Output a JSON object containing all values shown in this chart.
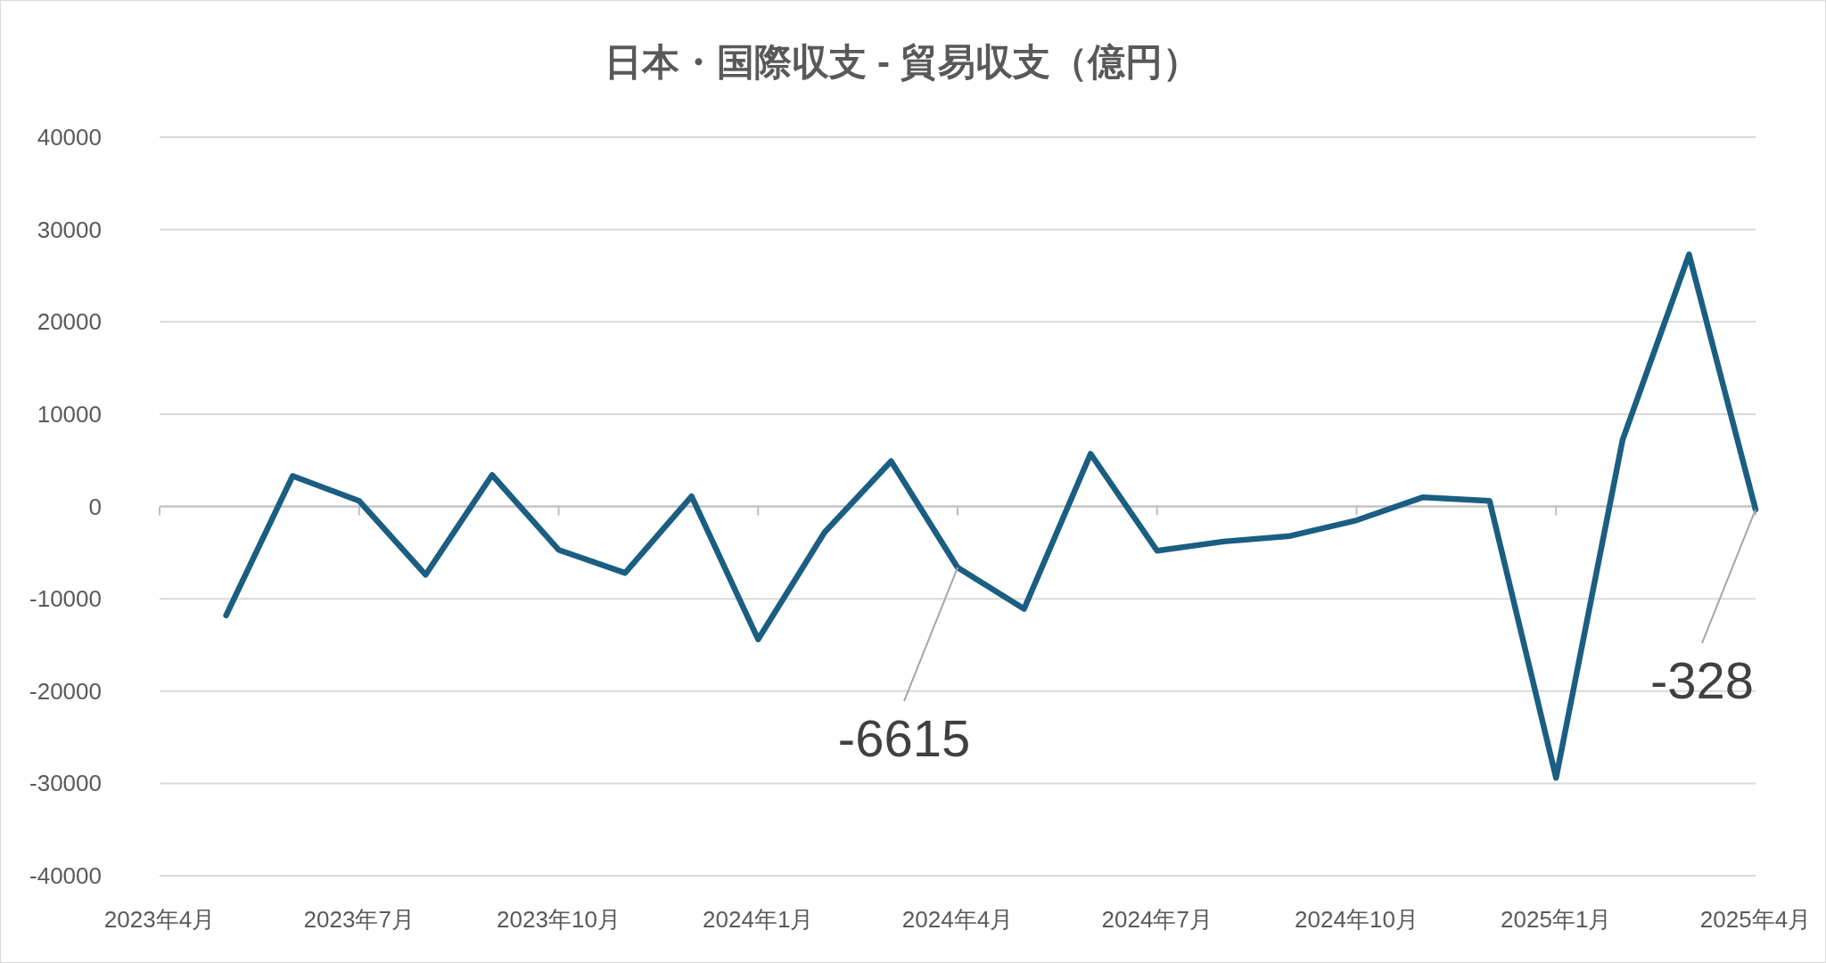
{
  "chart_data": {
    "type": "line",
    "title": "日本・国際収支 - 貿易収支（億円）",
    "x": [
      "2023-05",
      "2023-06",
      "2023-07",
      "2023-08",
      "2023-09",
      "2023-10",
      "2023-11",
      "2023-12",
      "2024-01",
      "2024-02",
      "2024-03",
      "2024-04",
      "2024-05",
      "2024-06",
      "2024-07",
      "2024-08",
      "2024-09",
      "2024-10",
      "2024-11",
      "2024-12",
      "2025-01",
      "2025-02",
      "2025-03",
      "2025-04"
    ],
    "series": [
      {
        "color": "#1a5e82",
        "values": [
          -11800,
          3300,
          600,
          -7400,
          3400,
          -4700,
          -7200,
          1100,
          -14400,
          -2800,
          4900,
          -6615,
          -11100,
          5700,
          -4800,
          -3800,
          -3200,
          -1500,
          1000,
          600,
          -29400,
          7200,
          27300,
          -328
        ],
        "value_labels": [
          null,
          null,
          null,
          null,
          null,
          null,
          null,
          null,
          null,
          null,
          null,
          "-6615",
          null,
          null,
          null,
          null,
          null,
          null,
          null,
          null,
          null,
          null,
          null,
          "-328"
        ]
      }
    ],
    "xlim": [
      "2023-04",
      "2025-04"
    ],
    "xticks": [
      {
        "value": "2023-04",
        "label": "2023年4月"
      },
      {
        "value": "2023-07",
        "label": "2023年7月"
      },
      {
        "value": "2023-10",
        "label": "2023年10月"
      },
      {
        "value": "2024-01",
        "label": "2024年1月"
      },
      {
        "value": "2024-04",
        "label": "2024年4月"
      },
      {
        "value": "2024-07",
        "label": "2024年7月"
      },
      {
        "value": "2024-10",
        "label": "2024年10月"
      },
      {
        "value": "2025-01",
        "label": "2025年1月"
      },
      {
        "value": "2025-04",
        "label": "2025年4月"
      }
    ],
    "ylim": [
      -40000,
      40000
    ],
    "yticks": [
      -40000,
      -30000,
      -20000,
      -10000,
      0,
      10000,
      20000,
      30000,
      40000
    ],
    "grid": "y",
    "marker": "none",
    "line_style": "solid"
  }
}
